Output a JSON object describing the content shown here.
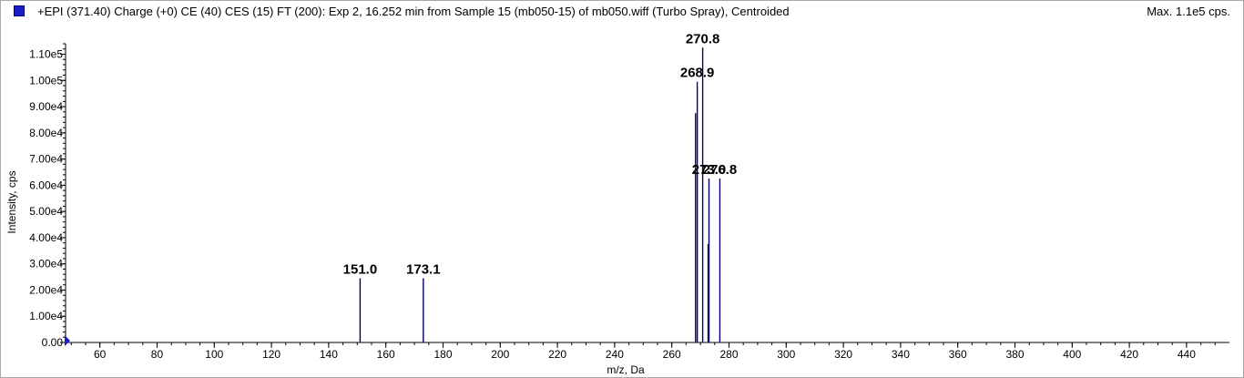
{
  "header": {
    "title": "+EPI (371.40) Charge (+0) CE (40) CES (15) FT (200): Exp 2, 16.252 min from Sample 15 (mb050-15) of mb050.wiff (Turbo Spray), Centroided",
    "max_label": "Max. 1.1e5 cps.",
    "swatch_color": "#1c1ccc"
  },
  "chart_data": {
    "type": "bar",
    "xlabel": "m/z, Da",
    "ylabel": "Intensity, cps",
    "xlim": [
      48,
      455
    ],
    "ylim": [
      0,
      114000
    ],
    "x_ticks": [
      60,
      80,
      100,
      120,
      140,
      160,
      180,
      200,
      220,
      240,
      260,
      280,
      300,
      320,
      340,
      360,
      380,
      400,
      420,
      440
    ],
    "x_tick_labels": [
      "60",
      "80",
      "100",
      "120",
      "140",
      "160",
      "180",
      "200",
      "220",
      "240",
      "260",
      "280",
      "300",
      "320",
      "340",
      "360",
      "380",
      "400",
      "420",
      "440"
    ],
    "y_ticks": [
      0,
      10000,
      20000,
      30000,
      40000,
      50000,
      60000,
      70000,
      80000,
      90000,
      100000,
      110000
    ],
    "y_tick_labels": [
      "0.00",
      "1.00e4",
      "2.00e4",
      "3.00e4",
      "4.00e4",
      "5.00e4",
      "6.00e4",
      "7.00e4",
      "8.00e4",
      "9.00e4",
      "1.00e5",
      "1.10e5"
    ],
    "bar_color": "#00006a",
    "series": [
      {
        "peaks": [
          {
            "x": 151.0,
            "y": 24500,
            "label": "151.0"
          },
          {
            "x": 173.1,
            "y": 24500,
            "label": "173.1"
          },
          {
            "x": 268.3,
            "y": 87500,
            "label": ""
          },
          {
            "x": 268.9,
            "y": 99500,
            "label": "268.9"
          },
          {
            "x": 270.8,
            "y": 112500,
            "label": "270.8"
          },
          {
            "x": 272.7,
            "y": 37500,
            "label": ""
          },
          {
            "x": 273.0,
            "y": 62500,
            "label": "273.0"
          },
          {
            "x": 276.8,
            "y": 62500,
            "label": "276.8"
          }
        ]
      }
    ]
  }
}
